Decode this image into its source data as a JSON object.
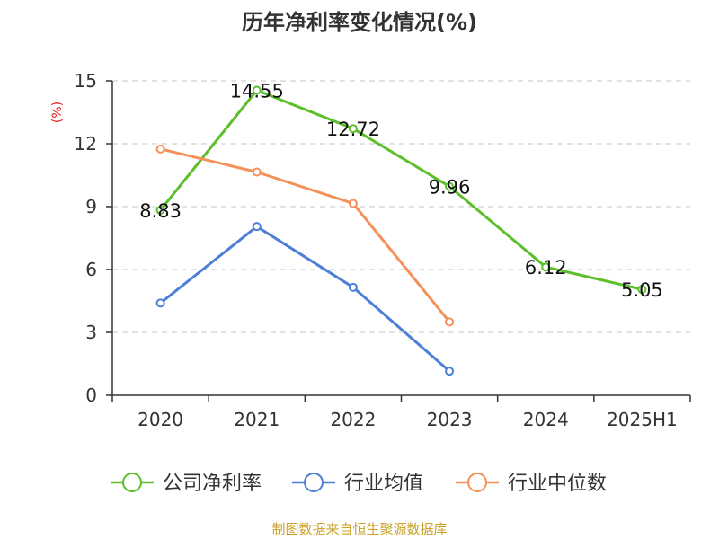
{
  "chart_data": {
    "type": "line",
    "title": "历年净利率变化情况(%)",
    "ylabel": "(%)",
    "categories": [
      "2020",
      "2021",
      "2022",
      "2023",
      "2024",
      "2025H1"
    ],
    "ylim": [
      0,
      15
    ],
    "yticks": [
      0,
      3,
      6,
      9,
      12,
      15
    ],
    "grid": true,
    "legend_position": "bottom",
    "series": [
      {
        "name": "公司净利率",
        "color": "#5cbf2a",
        "values": [
          8.83,
          14.55,
          12.72,
          9.96,
          6.12,
          5.05
        ],
        "labels": [
          "8.83",
          "14.55",
          "12.72",
          "9.96",
          "6.12",
          "5.05"
        ]
      },
      {
        "name": "行业均值",
        "color": "#4d7fd9",
        "values": [
          4.4,
          8.05,
          5.15,
          1.15,
          null,
          null
        ]
      },
      {
        "name": "行业中位数",
        "color": "#f5905a",
        "values": [
          11.75,
          10.65,
          9.15,
          3.5,
          null,
          null
        ]
      }
    ]
  },
  "source": "制图数据来自恒生聚源数据库"
}
